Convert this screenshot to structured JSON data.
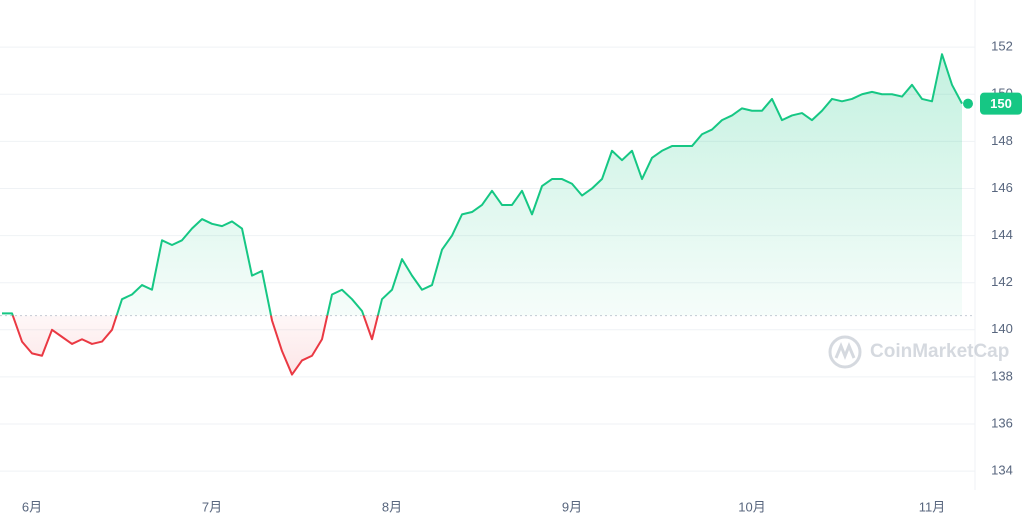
{
  "chart_data": {
    "type": "line",
    "categories": [
      null,
      null,
      null,
      "6月",
      null,
      null,
      null,
      null,
      null,
      null,
      null,
      null,
      null,
      null,
      null,
      null,
      null,
      null,
      null,
      null,
      null,
      "7月",
      null,
      null,
      null,
      null,
      null,
      null,
      null,
      null,
      null,
      null,
      null,
      null,
      null,
      null,
      null,
      null,
      null,
      "8月",
      null,
      null,
      null,
      null,
      null,
      null,
      null,
      null,
      null,
      null,
      null,
      null,
      null,
      null,
      null,
      null,
      null,
      "9月",
      null,
      null,
      null,
      null,
      null,
      null,
      null,
      null,
      null,
      null,
      null,
      null,
      null,
      null,
      null,
      null,
      null,
      "10月",
      null,
      null,
      null,
      null,
      null,
      null,
      null,
      null,
      null,
      null,
      null,
      null,
      null,
      null,
      null,
      null,
      null,
      "11月",
      null,
      null,
      null
    ],
    "series": [
      {
        "values": [
          140.7,
          140.7,
          139.5,
          139.0,
          138.9,
          140.0,
          139.7,
          139.4,
          139.6,
          139.4,
          139.5,
          140.0,
          141.3,
          141.5,
          141.9,
          141.7,
          143.8,
          143.6,
          143.8,
          144.3,
          144.7,
          144.5,
          144.4,
          144.6,
          144.3,
          142.3,
          142.5,
          140.4,
          139.1,
          138.1,
          138.7,
          138.9,
          139.6,
          141.5,
          141.7,
          141.3,
          140.8,
          139.6,
          141.3,
          141.7,
          143.0,
          142.3,
          141.7,
          141.9,
          143.4,
          144.0,
          144.9,
          145.0,
          145.3,
          145.9,
          145.3,
          145.3,
          145.9,
          144.9,
          146.1,
          146.4,
          146.4,
          146.2,
          145.7,
          146.0,
          146.4,
          147.6,
          147.2,
          147.6,
          146.4,
          147.3,
          147.6,
          147.8,
          147.8,
          147.8,
          148.3,
          148.5,
          148.9,
          149.1,
          149.4,
          149.3,
          149.3,
          149.8,
          148.9,
          149.1,
          149.2,
          148.9,
          149.3,
          149.8,
          149.7,
          149.8,
          150.0,
          150.1,
          150.0,
          150.0,
          149.9,
          150.4,
          149.8,
          149.7,
          151.7,
          150.4,
          149.6
        ]
      }
    ],
    "baseline": 140.6,
    "up_color": "#16c784",
    "down_color": "#ea3943",
    "ylim": [
      133.2,
      154
    ],
    "yticks": [
      134,
      136,
      138,
      140,
      142,
      144,
      146,
      148,
      150,
      152
    ],
    "grid": true,
    "last_price": {
      "value": 149.6,
      "label": "150"
    },
    "watermark": "CoinMarketCap"
  }
}
